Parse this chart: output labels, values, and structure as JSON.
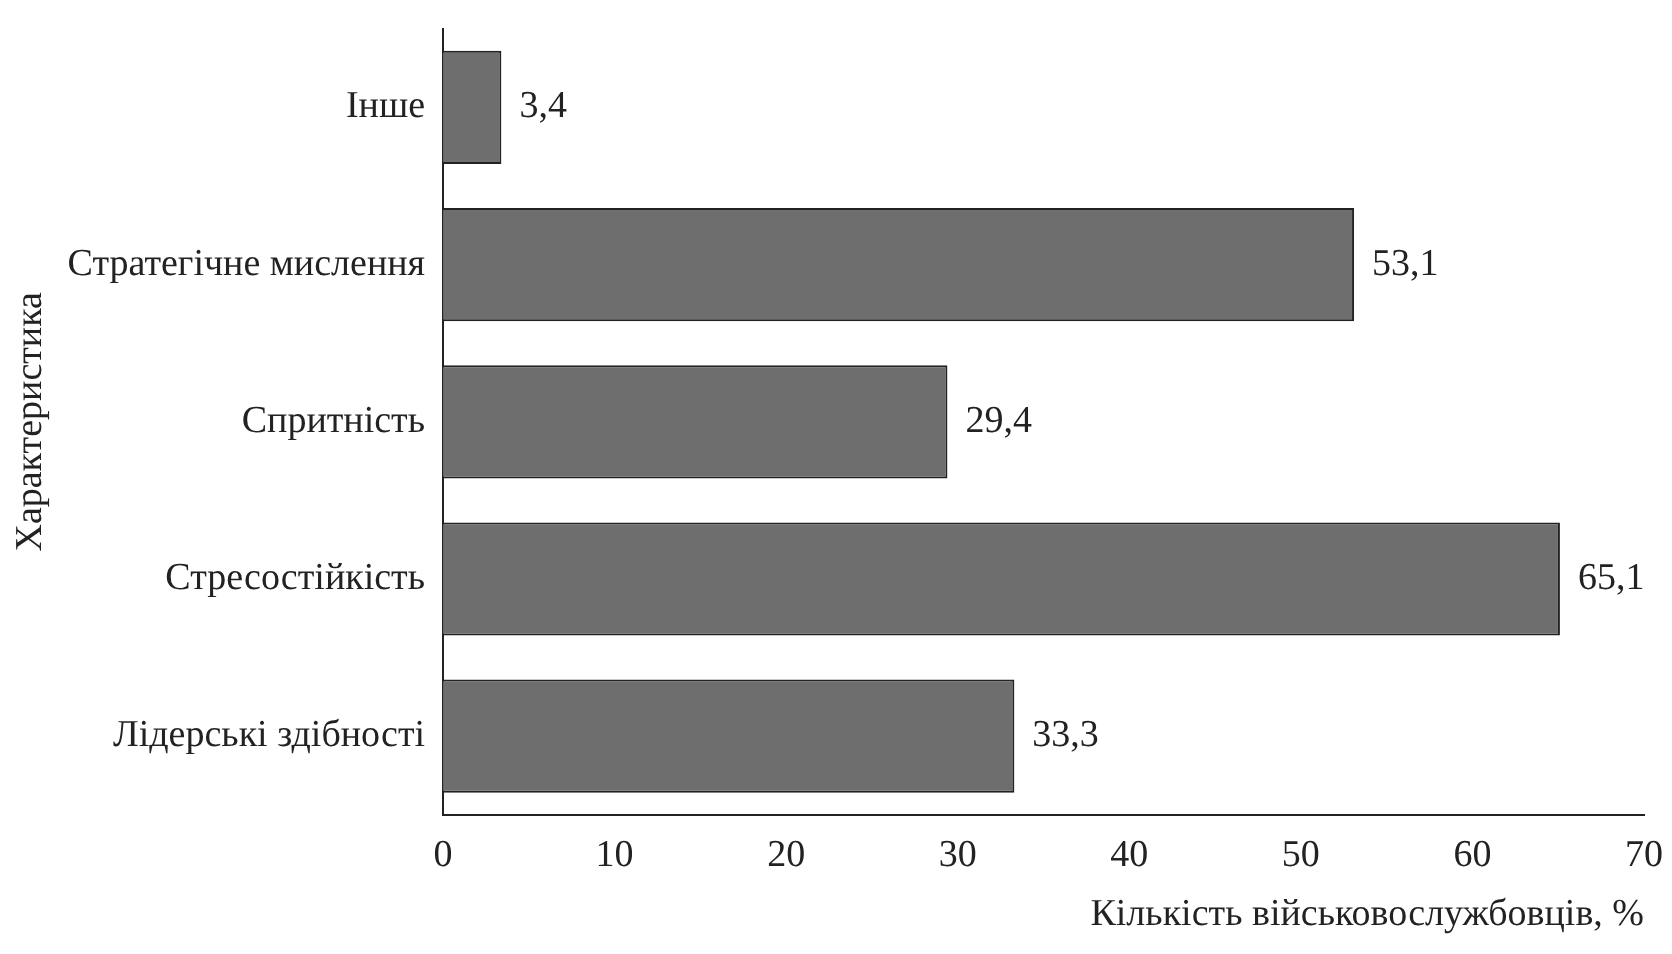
{
  "chart_data": {
    "type": "bar",
    "orientation": "horizontal",
    "categories": [
      "Інше",
      "Стратегічне мислення",
      "Спритність",
      "Стресостійкість",
      "Лідерські здібності"
    ],
    "values": [
      3.4,
      53.1,
      29.4,
      65.1,
      33.3
    ],
    "value_labels": [
      "3,4",
      "53,1",
      "29,4",
      "65,1",
      "33,3"
    ],
    "color": "#6e6e6e",
    "xlim": [
      0,
      70
    ],
    "xticks": [
      0,
      10,
      20,
      30,
      40,
      50,
      60,
      70
    ],
    "xlabel": "Кількість військовослужбовців, %",
    "ylabel": "Характеристика",
    "grid": false,
    "legend": false
  }
}
